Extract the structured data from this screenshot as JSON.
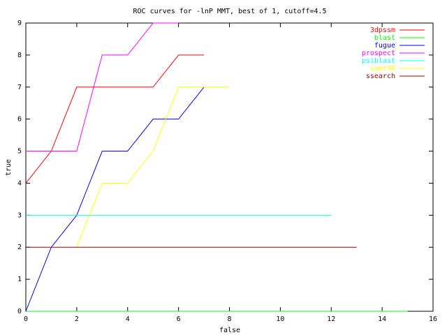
{
  "chart_data": {
    "type": "line",
    "title": "ROC curves for -lnP MMT, best of 1, cutoff=4.5",
    "x_label": "false",
    "y_label": "true",
    "xlim": [
      0,
      16
    ],
    "ylim": [
      0,
      9
    ],
    "xticks": [
      0,
      2,
      4,
      6,
      8,
      10,
      12,
      14,
      16
    ],
    "yticks": [
      0,
      1,
      2,
      3,
      4,
      5,
      6,
      7,
      8,
      9
    ],
    "legend": "upper right",
    "series": [
      {
        "name": "3dpssm",
        "color": "#ff0000",
        "x": [
          0,
          1,
          2,
          5,
          6,
          7
        ],
        "values": [
          4,
          5,
          7,
          7,
          8,
          8
        ]
      },
      {
        "name": "blast",
        "color": "#00ff00",
        "x": [
          0,
          15
        ],
        "values": [
          0,
          0
        ]
      },
      {
        "name": "fugue",
        "color": "#0000ff",
        "x": [
          0,
          1,
          2,
          3,
          4,
          5,
          6,
          7
        ],
        "values": [
          0,
          2,
          3,
          5,
          5,
          6,
          6,
          7
        ]
      },
      {
        "name": "prospect",
        "color": "#ff00ff",
        "x": [
          0,
          2,
          3,
          4,
          5,
          6
        ],
        "values": [
          5,
          5,
          8,
          8,
          9,
          9
        ]
      },
      {
        "name": "psiblast",
        "color": "#00ffff",
        "x": [
          0,
          12
        ],
        "values": [
          3,
          3
        ]
      },
      {
        "name": "samt98",
        "color": "#ffff00",
        "x": [
          2,
          3,
          4,
          5,
          6,
          8
        ],
        "values": [
          2,
          4,
          4,
          5,
          7,
          7
        ]
      },
      {
        "name": "ssearch",
        "color": "#a00000",
        "x": [
          0,
          13
        ],
        "values": [
          2,
          2
        ]
      }
    ]
  }
}
